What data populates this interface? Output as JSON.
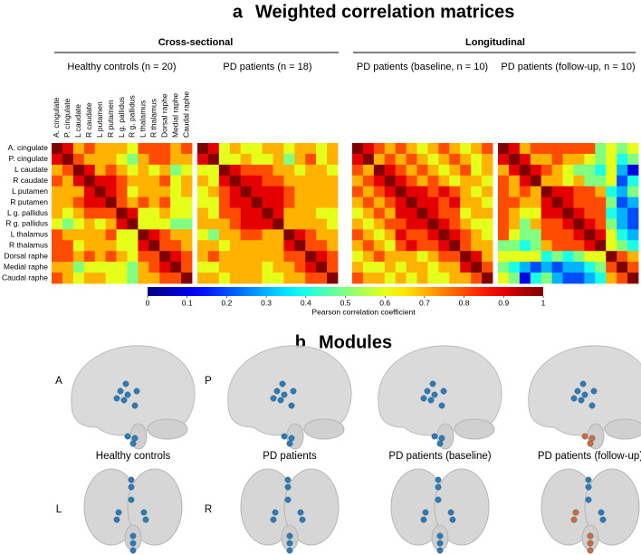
{
  "figure": {
    "panel_a": "a",
    "title_a": "Weighted correlation matrices",
    "group_1": "Cross-sectional",
    "group_2": "Longitudinal",
    "panel_b": "b",
    "title_b": "Modules"
  },
  "colorbar": {
    "label": "Pearson correlation coefficient",
    "colormap": "jet",
    "lim": [
      0,
      1
    ],
    "ticks": [
      0,
      0.1,
      0.2,
      0.3,
      0.4,
      0.5,
      0.6,
      0.7,
      0.8,
      0.9,
      1
    ]
  },
  "modules": {
    "labels": [
      "Healthy controls",
      "PD patients",
      "PD patients (baseline)",
      "PD patients (follow-up)"
    ],
    "side_left": "A",
    "side_right": "P",
    "top_left": "L",
    "top_right": "R"
  },
  "chart_data": [
    {
      "type": "heatmap",
      "title": "Healthy controls (n = 20)",
      "categories": [
        "A. cingulate",
        "P. cingulate",
        "L caudate",
        "R caudate",
        "L putamen",
        "R putamen",
        "L g. pallidus",
        "R g. pallidus",
        "L thalamus",
        "R thalamus",
        "Dorsal raphe",
        "Medial raphe",
        "Caudal raphe"
      ],
      "values": [
        [
          1,
          0.9,
          0.7,
          0.8,
          0.7,
          0.7,
          0.7,
          0.6,
          0.8,
          0.8,
          0.8,
          0.7,
          0.8
        ],
        [
          0.9,
          1,
          0.8,
          0.7,
          0.7,
          0.7,
          0.6,
          0.5,
          0.7,
          0.8,
          0.8,
          0.7,
          0.7
        ],
        [
          0.7,
          0.8,
          1,
          0.9,
          0.7,
          0.8,
          0.7,
          0.6,
          0.7,
          0.6,
          0.7,
          0.5,
          0.6
        ],
        [
          0.8,
          0.7,
          0.9,
          1,
          0.9,
          0.9,
          0.8,
          0.7,
          0.7,
          0.7,
          0.8,
          0.6,
          0.7
        ],
        [
          0.7,
          0.7,
          0.7,
          0.9,
          1,
          0.9,
          0.8,
          0.6,
          0.7,
          0.7,
          0.7,
          0.6,
          0.7
        ],
        [
          0.7,
          0.7,
          0.8,
          0.9,
          0.9,
          1,
          0.8,
          0.7,
          0.8,
          0.7,
          0.8,
          0.6,
          0.6
        ],
        [
          0.7,
          0.6,
          0.7,
          0.8,
          0.8,
          0.8,
          1,
          0.9,
          0.6,
          0.6,
          0.7,
          0.6,
          0.6
        ],
        [
          0.6,
          0.5,
          0.6,
          0.7,
          0.6,
          0.7,
          0.9,
          1,
          0.6,
          0.6,
          0.6,
          0.5,
          0.5
        ],
        [
          0.8,
          0.7,
          0.7,
          0.7,
          0.7,
          0.8,
          0.6,
          0.6,
          1,
          0.9,
          0.8,
          0.7,
          0.7
        ],
        [
          0.8,
          0.8,
          0.6,
          0.7,
          0.7,
          0.7,
          0.6,
          0.6,
          0.9,
          1,
          0.8,
          0.8,
          0.7
        ],
        [
          0.8,
          0.8,
          0.7,
          0.8,
          0.7,
          0.8,
          0.7,
          0.6,
          0.8,
          0.8,
          1,
          0.9,
          0.8
        ],
        [
          0.7,
          0.7,
          0.5,
          0.6,
          0.6,
          0.6,
          0.6,
          0.5,
          0.7,
          0.8,
          0.9,
          1,
          0.8
        ],
        [
          0.8,
          0.7,
          0.6,
          0.7,
          0.7,
          0.6,
          0.6,
          0.5,
          0.7,
          0.7,
          0.8,
          0.8,
          1
        ]
      ]
    },
    {
      "type": "heatmap",
      "title": "PD patients (n = 18)",
      "values": [
        [
          1,
          0.9,
          0.6,
          0.7,
          0.6,
          0.6,
          0.7,
          0.7,
          0.6,
          0.7,
          0.7,
          0.6,
          0.7
        ],
        [
          0.9,
          1,
          0.6,
          0.6,
          0.7,
          0.6,
          0.6,
          0.7,
          0.5,
          0.7,
          0.8,
          0.6,
          0.7
        ],
        [
          0.6,
          0.6,
          1,
          0.9,
          0.8,
          0.8,
          0.8,
          0.7,
          0.7,
          0.6,
          0.7,
          0.7,
          0.6
        ],
        [
          0.7,
          0.6,
          0.9,
          1,
          0.9,
          0.9,
          0.8,
          0.8,
          0.7,
          0.7,
          0.7,
          0.7,
          0.7
        ],
        [
          0.6,
          0.7,
          0.8,
          0.9,
          1,
          0.9,
          0.9,
          0.9,
          0.8,
          0.7,
          0.7,
          0.7,
          0.7
        ],
        [
          0.6,
          0.6,
          0.8,
          0.9,
          0.9,
          1,
          0.9,
          0.9,
          0.8,
          0.7,
          0.7,
          0.7,
          0.7
        ],
        [
          0.7,
          0.6,
          0.8,
          0.8,
          0.9,
          0.9,
          1,
          0.9,
          0.7,
          0.7,
          0.7,
          0.6,
          0.6
        ],
        [
          0.7,
          0.7,
          0.7,
          0.8,
          0.9,
          0.9,
          0.9,
          1,
          0.7,
          0.7,
          0.7,
          0.7,
          0.6
        ],
        [
          0.6,
          0.5,
          0.7,
          0.7,
          0.8,
          0.8,
          0.7,
          0.7,
          1,
          0.9,
          0.8,
          0.7,
          0.7
        ],
        [
          0.7,
          0.7,
          0.6,
          0.7,
          0.7,
          0.7,
          0.7,
          0.7,
          0.9,
          1,
          0.8,
          0.8,
          0.7
        ],
        [
          0.7,
          0.8,
          0.7,
          0.7,
          0.7,
          0.7,
          0.7,
          0.7,
          0.8,
          0.8,
          1,
          0.9,
          0.8
        ],
        [
          0.6,
          0.6,
          0.7,
          0.7,
          0.7,
          0.7,
          0.6,
          0.7,
          0.7,
          0.8,
          0.9,
          1,
          0.8
        ],
        [
          0.7,
          0.7,
          0.6,
          0.7,
          0.7,
          0.7,
          0.6,
          0.6,
          0.7,
          0.7,
          0.8,
          0.8,
          1
        ]
      ]
    },
    {
      "type": "heatmap",
      "title": "PD patients (baseline, n = 10)",
      "values": [
        [
          1,
          0.9,
          0.8,
          0.7,
          0.8,
          0.7,
          0.6,
          0.7,
          0.8,
          0.7,
          0.6,
          0.7,
          0.8
        ],
        [
          0.9,
          1,
          0.7,
          0.8,
          0.7,
          0.8,
          0.7,
          0.6,
          0.7,
          0.8,
          0.7,
          0.6,
          0.7
        ],
        [
          0.8,
          0.7,
          1,
          0.9,
          0.8,
          0.7,
          0.8,
          0.7,
          0.6,
          0.7,
          0.8,
          0.6,
          0.7
        ],
        [
          0.7,
          0.8,
          0.9,
          1,
          0.9,
          0.8,
          0.7,
          0.8,
          0.7,
          0.6,
          0.7,
          0.7,
          0.6
        ],
        [
          0.8,
          0.7,
          0.8,
          0.9,
          1,
          0.9,
          0.9,
          0.8,
          0.9,
          0.8,
          0.7,
          0.6,
          0.7
        ],
        [
          0.7,
          0.8,
          0.7,
          0.8,
          0.9,
          1,
          0.9,
          0.9,
          0.8,
          0.9,
          0.7,
          0.7,
          0.6
        ],
        [
          0.6,
          0.7,
          0.8,
          0.7,
          0.9,
          0.9,
          1,
          0.9,
          0.8,
          0.8,
          0.6,
          0.7,
          0.7
        ],
        [
          0.7,
          0.6,
          0.7,
          0.8,
          0.8,
          0.9,
          0.9,
          1,
          0.9,
          0.8,
          0.7,
          0.6,
          0.6
        ],
        [
          0.8,
          0.7,
          0.6,
          0.7,
          0.9,
          0.8,
          0.8,
          0.9,
          1,
          0.9,
          0.8,
          0.7,
          0.6
        ],
        [
          0.7,
          0.8,
          0.7,
          0.6,
          0.8,
          0.9,
          0.8,
          0.8,
          0.9,
          1,
          0.8,
          0.7,
          0.7
        ],
        [
          0.6,
          0.7,
          0.8,
          0.7,
          0.7,
          0.7,
          0.6,
          0.7,
          0.8,
          0.8,
          1,
          0.9,
          0.7
        ],
        [
          0.7,
          0.6,
          0.6,
          0.7,
          0.6,
          0.7,
          0.7,
          0.6,
          0.7,
          0.7,
          0.9,
          1,
          0.8
        ],
        [
          0.8,
          0.7,
          0.7,
          0.6,
          0.7,
          0.6,
          0.7,
          0.6,
          0.6,
          0.7,
          0.7,
          0.8,
          1
        ]
      ]
    },
    {
      "type": "heatmap",
      "title": "PD patients (follow-up, n = 10)",
      "values": [
        [
          1,
          0.9,
          0.7,
          0.8,
          0.8,
          0.8,
          0.8,
          0.8,
          0.8,
          0.5,
          0.6,
          0.5,
          0.6
        ],
        [
          0.9,
          1,
          0.9,
          0.7,
          0.7,
          0.8,
          0.7,
          0.7,
          0.6,
          0.5,
          0.6,
          0.4,
          0.5
        ],
        [
          0.7,
          0.9,
          1,
          0.9,
          0.8,
          0.7,
          0.6,
          0.5,
          0.5,
          0.4,
          0.6,
          0.3,
          0.1
        ],
        [
          0.8,
          0.7,
          0.9,
          1,
          0.7,
          0.7,
          0.6,
          0.7,
          0.5,
          0.5,
          0.6,
          0.2,
          0.4
        ],
        [
          0.8,
          0.7,
          0.8,
          0.7,
          1,
          0.9,
          0.9,
          0.8,
          0.8,
          0.7,
          0.4,
          0.3,
          0.5
        ],
        [
          0.8,
          0.8,
          0.7,
          0.7,
          0.9,
          1,
          0.9,
          0.8,
          0.8,
          0.8,
          0.5,
          0.2,
          0.3
        ],
        [
          0.8,
          0.7,
          0.6,
          0.6,
          0.9,
          0.9,
          1,
          0.9,
          0.8,
          0.8,
          0.4,
          0.3,
          0.2
        ],
        [
          0.8,
          0.7,
          0.5,
          0.7,
          0.8,
          0.8,
          0.9,
          1,
          0.9,
          0.8,
          0.5,
          0.3,
          0.2
        ],
        [
          0.8,
          0.6,
          0.5,
          0.5,
          0.8,
          0.8,
          0.8,
          0.9,
          1,
          0.9,
          0.6,
          0.4,
          0.3
        ],
        [
          0.5,
          0.5,
          0.4,
          0.5,
          0.7,
          0.8,
          0.8,
          0.8,
          0.9,
          1,
          0.6,
          0.5,
          0.4
        ],
        [
          0.6,
          0.6,
          0.6,
          0.6,
          0.4,
          0.5,
          0.4,
          0.5,
          0.6,
          0.6,
          1,
          0.8,
          0.7
        ],
        [
          0.5,
          0.4,
          0.3,
          0.2,
          0.3,
          0.2,
          0.3,
          0.3,
          0.4,
          0.5,
          0.8,
          1,
          0.8
        ],
        [
          0.6,
          0.5,
          0.1,
          0.4,
          0.5,
          0.3,
          0.2,
          0.2,
          0.3,
          0.4,
          0.7,
          0.8,
          1
        ]
      ]
    }
  ]
}
